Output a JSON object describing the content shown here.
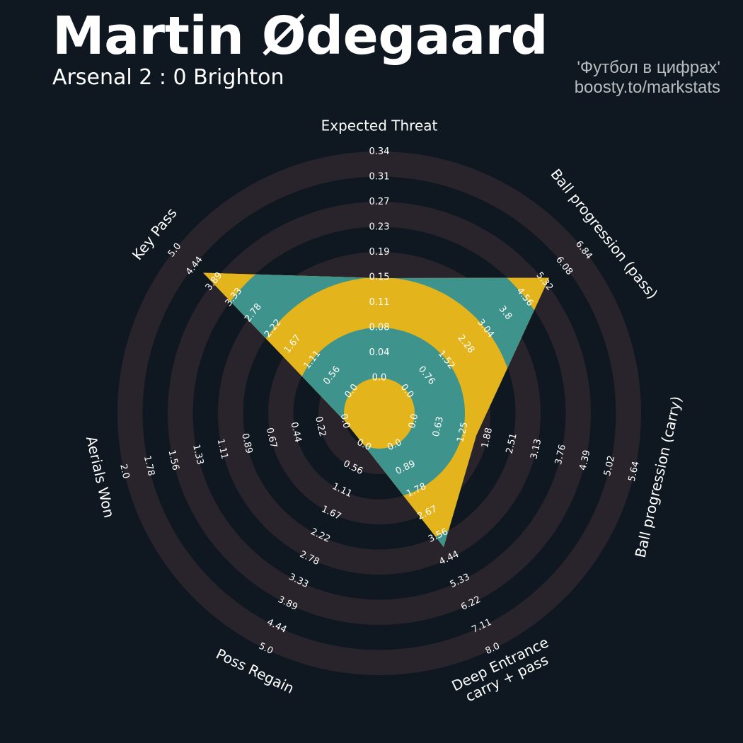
{
  "header": {
    "title": "Martin Ødegaard",
    "subtitle": "Arsenal 2 : 0 Brighton",
    "credit_line1": "'Футбол в цифрах'",
    "credit_line2": "boosty.to/markstats"
  },
  "colors": {
    "background": "#0f1820",
    "ring": "#29242b",
    "fill_primary": "#e3b41c",
    "fill_alt": "#3e948c",
    "text": "#ffffff",
    "credit": "#b9bcc0"
  },
  "chart_data": {
    "type": "radar",
    "player": "Martin Ødegaard",
    "params": [
      {
        "label": "Expected Threat",
        "ticks": [
          "0.0",
          "0.04",
          "0.08",
          "0.11",
          "0.15",
          "0.19",
          "0.23",
          "0.27",
          "0.31",
          "0.34"
        ],
        "value": 0.15,
        "min": 0.0,
        "max": 0.34
      },
      {
        "label": "Ball progression (pass)",
        "ticks": [
          "0.0",
          "0.76",
          "1.52",
          "2.28",
          "3.04",
          "3.8",
          "4.56",
          "5.32",
          "6.08",
          "6.84"
        ],
        "value": 5.5,
        "min": 0.0,
        "max": 6.84
      },
      {
        "label": "Ball progression (carry)",
        "ticks": [
          "0.0",
          "0.63",
          "1.25",
          "1.88",
          "2.51",
          "3.13",
          "3.76",
          "4.39",
          "5.02",
          "5.64"
        ],
        "value": 1.6,
        "min": 0.0,
        "max": 5.64
      },
      {
        "label": "Deep Entrance\ncarry + pass",
        "ticks": [
          "0.0",
          "0.89",
          "1.78",
          "2.67",
          "3.56",
          "4.44",
          "5.33",
          "6.22",
          "7.11",
          "8.0"
        ],
        "value": 4.0,
        "min": 0.0,
        "max": 8.0
      },
      {
        "label": "Poss Regain",
        "ticks": [
          "0.0",
          "0.56",
          "1.11",
          "1.67",
          "2.22",
          "2.78",
          "3.33",
          "3.89",
          "4.44",
          "5.0"
        ],
        "value": 0.0,
        "min": 0.0,
        "max": 5.0
      },
      {
        "label": "Aerials Won",
        "ticks": [
          "0.0",
          "0.22",
          "0.44",
          "0.67",
          "0.89",
          "1.11",
          "1.33",
          "1.56",
          "1.78",
          "2.0"
        ],
        "value": 0.0,
        "min": 0.0,
        "max": 2.0
      },
      {
        "label": "Key Pass",
        "ticks": [
          "0.0",
          "0.56",
          "1.11",
          "1.67",
          "2.22",
          "2.78",
          "3.33",
          "3.89",
          "4.44",
          "5.0"
        ],
        "value": 4.2,
        "min": 0.0,
        "max": 5.0
      }
    ]
  }
}
